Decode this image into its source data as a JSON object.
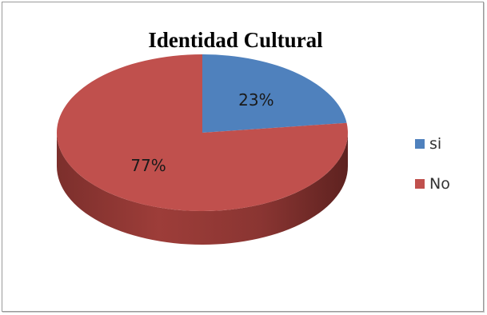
{
  "chart_data": {
    "type": "pie",
    "title": "Identidad Cultural",
    "categories": [
      "si",
      "No"
    ],
    "values": [
      23,
      77
    ],
    "data_labels": [
      "23%",
      "77%"
    ],
    "colors": [
      "#4f81bd",
      "#c0504d"
    ],
    "style": "3d",
    "legend_position": "right"
  }
}
